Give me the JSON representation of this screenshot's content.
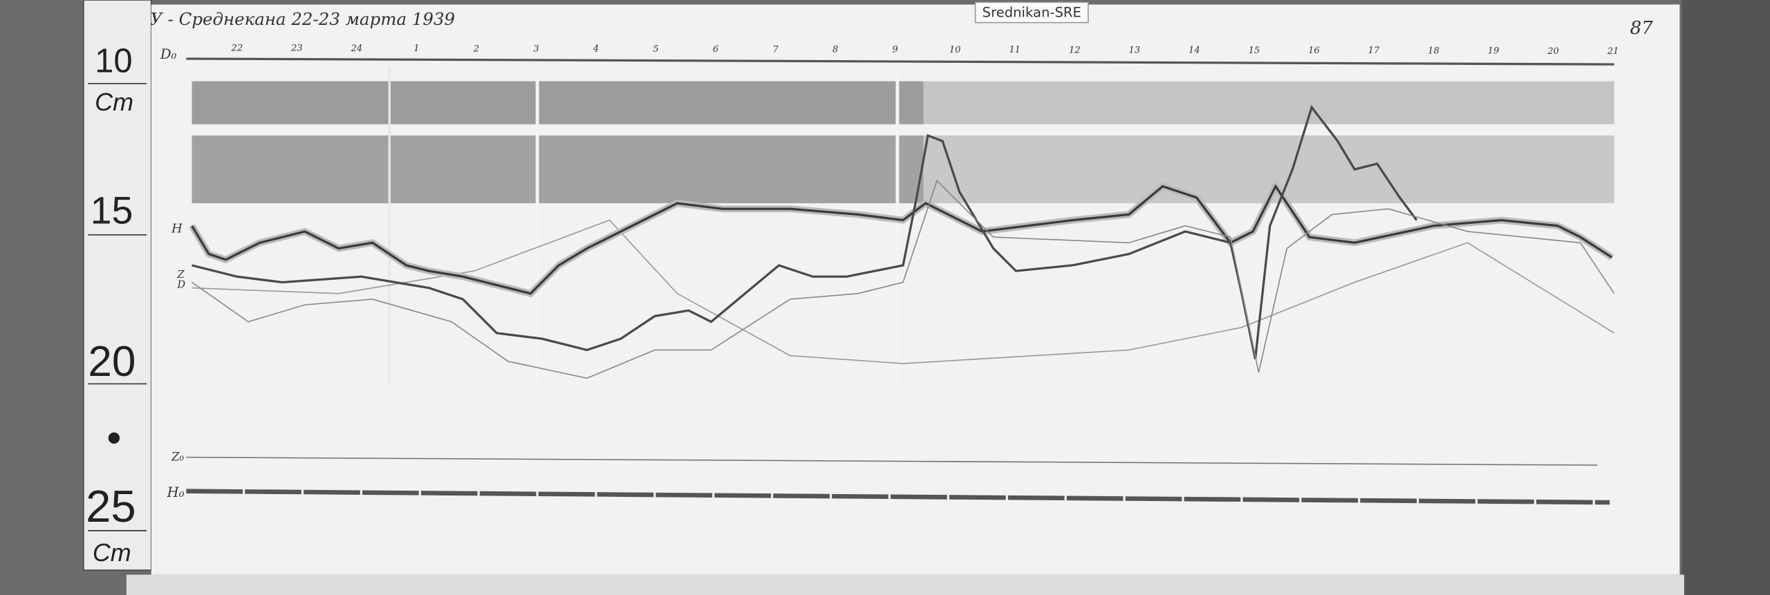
{
  "header": {
    "title": "У - Среднекана 22-23 марта 1939",
    "page_number": "87",
    "station_tag": "Srednikan-SRE"
  },
  "ruler": {
    "labels": [
      "10",
      "Cm",
      "15",
      "20",
      "25",
      "Cm"
    ]
  },
  "hour_marks": [
    "22",
    "23",
    "24",
    "1",
    "2",
    "3",
    "4",
    "5",
    "6",
    "7",
    "8",
    "9",
    "10",
    "11",
    "12",
    "13",
    "14",
    "15",
    "16",
    "17",
    "18",
    "19",
    "20",
    "21"
  ],
  "channels": [
    "D₀",
    "H",
    "Z",
    "D",
    "Z₀",
    "H₀"
  ]
}
